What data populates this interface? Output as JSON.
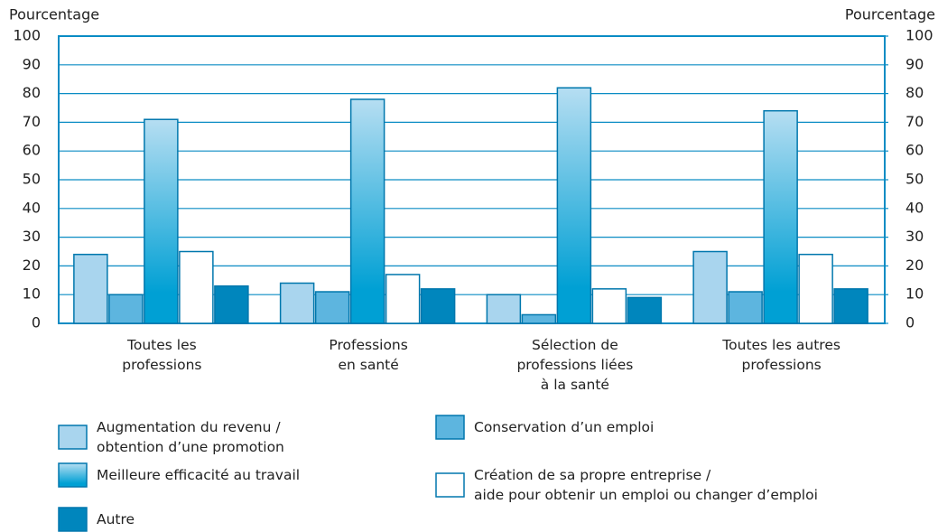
{
  "chart_data": {
    "type": "bar",
    "y_label": "Pourcentage",
    "y2_label": "Pourcentage",
    "categories": [
      "Toutes les\nprofessions",
      "Professions\nen santé",
      "Sélection de\nprofessions liées\nà la santé",
      "Toutes les autres\nprofessions"
    ],
    "series": [
      {
        "name": "Augmentation du revenu /\nobtention d’une promotion",
        "color": "#a9d5ee",
        "values": [
          24,
          14,
          10,
          25
        ]
      },
      {
        "name": "Conservation d’un emploi",
        "color": "#5db5df",
        "values": [
          10,
          11,
          3,
          11
        ]
      },
      {
        "name": "Meilleure efficacité au travail",
        "color": "#00a0d4",
        "gradient": true,
        "values": [
          71,
          78,
          82,
          74
        ]
      },
      {
        "name": "Création de sa propre entreprise /\naide pour obtenir un emploi ou changer d’emploi",
        "color": "#ffffff",
        "values": [
          25,
          17,
          12,
          24
        ]
      },
      {
        "name": "Autre",
        "color": "#0086bd",
        "values": [
          13,
          12,
          9,
          12
        ]
      }
    ],
    "ylim": [
      0,
      100
    ],
    "yticks": [
      0,
      10,
      20,
      30,
      40,
      50,
      60,
      70,
      80,
      90,
      100
    ],
    "y2lim": [
      0,
      100
    ],
    "y2ticks": [
      0,
      10,
      20,
      30,
      40,
      50,
      60,
      70,
      80,
      90,
      100
    ],
    "grid": true
  }
}
